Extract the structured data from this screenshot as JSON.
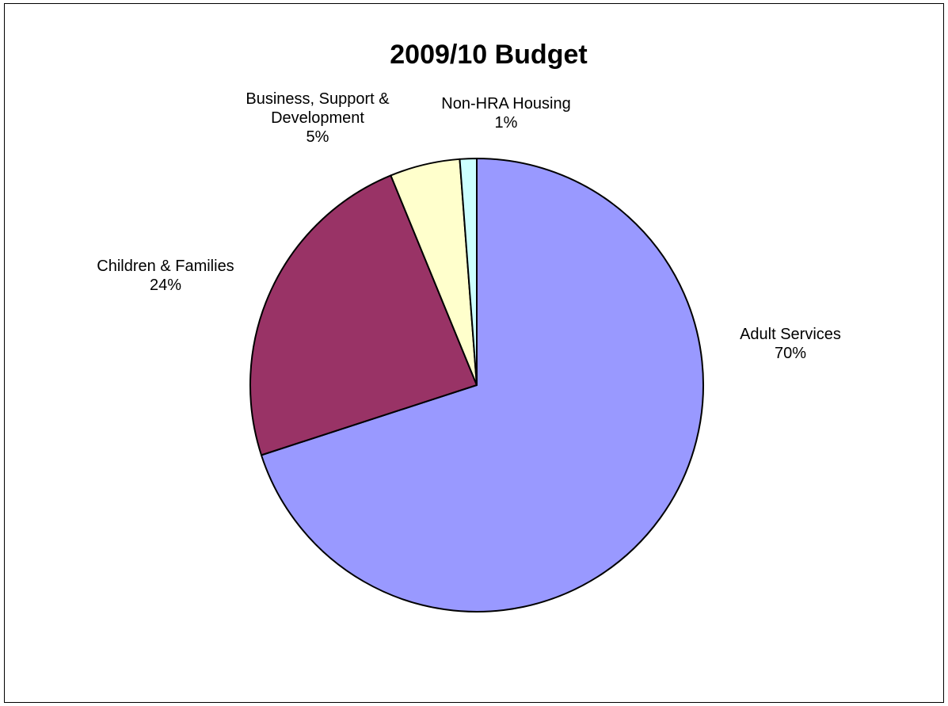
{
  "chart_data": {
    "type": "pie",
    "title": "2009/10 Budget",
    "start_angle_deg": 0,
    "direction": "clockwise",
    "slices": [
      {
        "label": "Adult Services",
        "value": 70.0,
        "display": "70%",
        "color": "#9999ff"
      },
      {
        "label": "Children & Families",
        "value": 23.8,
        "display": "24%",
        "color": "#993366"
      },
      {
        "label": "Business, Support & Development",
        "label_lines": [
          "Business, Support &",
          "Development"
        ],
        "value": 5.0,
        "display": "5%",
        "color": "#ffffcc"
      },
      {
        "label": "Non-HRA Housing",
        "value": 1.2,
        "display": "1%",
        "color": "#ccffff"
      }
    ]
  }
}
